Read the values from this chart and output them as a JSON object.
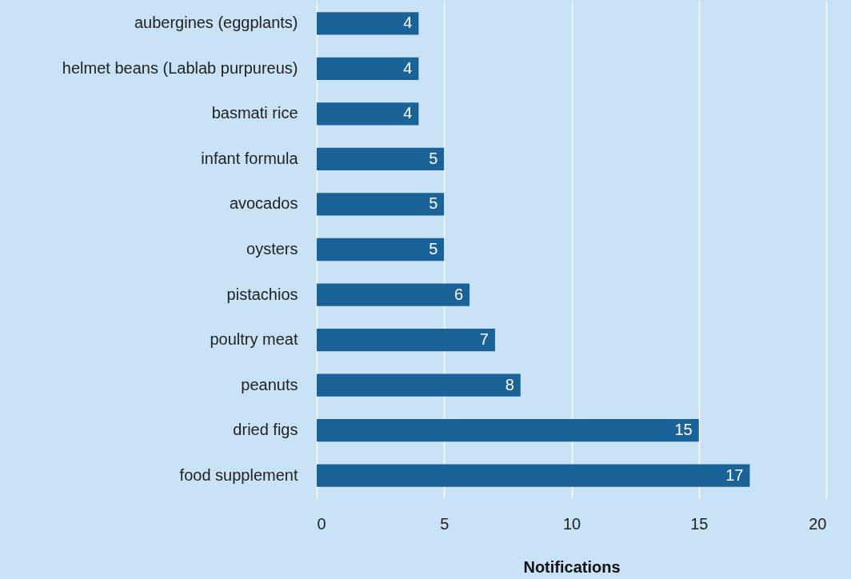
{
  "chart_data": {
    "type": "bar",
    "orientation": "horizontal",
    "xlabel": "Notifications",
    "categories": [
      "aubergines (eggplants)",
      "helmet beans (Lablab purpureus)",
      "basmati rice",
      "infant formula",
      "avocados",
      "oysters",
      "pistachios",
      "poultry meat",
      "peanuts",
      "dried figs",
      "food supplement"
    ],
    "values": [
      4,
      4,
      4,
      5,
      5,
      5,
      6,
      7,
      8,
      15,
      17
    ],
    "color": "#1a6399",
    "xlim": [
      0,
      20
    ],
    "xticks": [
      0,
      5,
      10,
      15,
      20
    ],
    "grid": "x",
    "data_labels": true
  }
}
